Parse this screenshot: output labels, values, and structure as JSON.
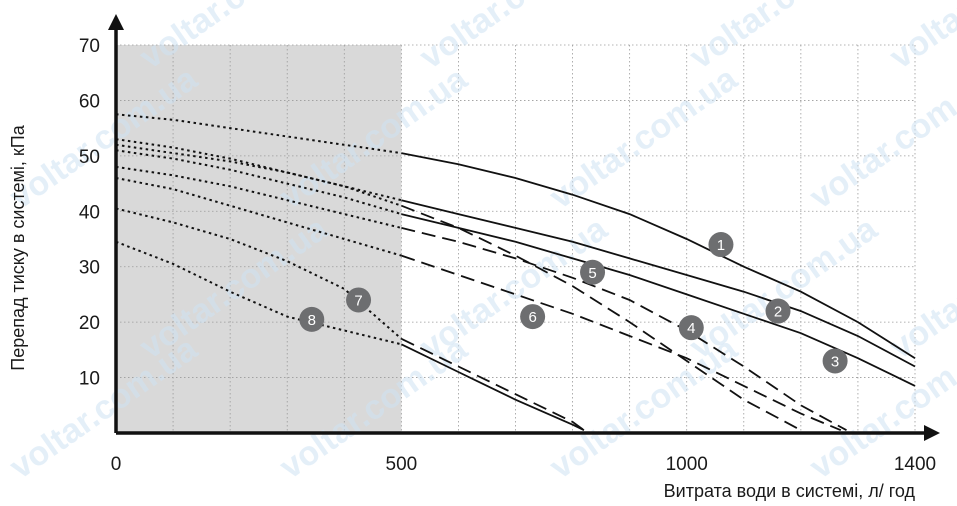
{
  "chart_data": {
    "type": "line",
    "xlabel": "Витрата води в системі, л/ год",
    "ylabel": "Перепад тиску в системі, кПа",
    "xlim": [
      0,
      1450
    ],
    "ylim": [
      0,
      70
    ],
    "x_ticks": [
      0,
      500,
      1000,
      1400
    ],
    "y_ticks": [
      10,
      20,
      30,
      40,
      50,
      60,
      70
    ],
    "grid": true,
    "shaded_region": {
      "x_range": [
        0,
        500
      ],
      "color": "#d9d9d9"
    },
    "watermark": "voltar.com.ua",
    "series": [
      {
        "name": "1",
        "line_style": "solid",
        "dotted_until": 500,
        "points": [
          [
            0,
            57.5
          ],
          [
            100,
            56.5
          ],
          [
            200,
            55
          ],
          [
            300,
            53.5
          ],
          [
            400,
            52
          ],
          [
            500,
            50.5
          ],
          [
            600,
            48.5
          ],
          [
            700,
            46
          ],
          [
            800,
            43
          ],
          [
            900,
            39.5
          ],
          [
            1000,
            35
          ],
          [
            1100,
            30
          ],
          [
            1200,
            25.5
          ],
          [
            1300,
            20
          ],
          [
            1400,
            13.5
          ]
        ],
        "label_at": [
          1060,
          34
        ]
      },
      {
        "name": "2",
        "line_style": "solid",
        "dotted_until": 500,
        "points": [
          [
            0,
            52
          ],
          [
            100,
            50.5
          ],
          [
            200,
            49
          ],
          [
            300,
            47
          ],
          [
            400,
            44.5
          ],
          [
            500,
            42
          ],
          [
            600,
            39.5
          ],
          [
            700,
            37
          ],
          [
            800,
            34.5
          ],
          [
            900,
            31.5
          ],
          [
            1000,
            28.5
          ],
          [
            1100,
            25.5
          ],
          [
            1200,
            22
          ],
          [
            1300,
            17.5
          ],
          [
            1400,
            12
          ]
        ],
        "label_at": [
          1160,
          22
        ]
      },
      {
        "name": "3",
        "line_style": "solid",
        "dotted_until": 500,
        "points": [
          [
            0,
            51
          ],
          [
            100,
            49.5
          ],
          [
            200,
            47.5
          ],
          [
            300,
            45
          ],
          [
            400,
            42.5
          ],
          [
            500,
            39.5
          ],
          [
            600,
            37
          ],
          [
            700,
            34.5
          ],
          [
            800,
            31.5
          ],
          [
            900,
            28.5
          ],
          [
            1000,
            25
          ],
          [
            1100,
            21.5
          ],
          [
            1200,
            18
          ],
          [
            1300,
            13.5
          ],
          [
            1400,
            8.5
          ]
        ],
        "label_at": [
          1260,
          13
        ]
      },
      {
        "name": "4",
        "line_style": "dashed",
        "dotted_until": 500,
        "points": [
          [
            0,
            53
          ],
          [
            100,
            51.5
          ],
          [
            200,
            49.5
          ],
          [
            300,
            47
          ],
          [
            400,
            44.5
          ],
          [
            500,
            41
          ],
          [
            600,
            37
          ],
          [
            700,
            32
          ],
          [
            800,
            26.5
          ],
          [
            900,
            20
          ],
          [
            1000,
            13
          ],
          [
            1100,
            6
          ],
          [
            1200,
            0.5
          ]
        ],
        "label_at": [
          1008,
          19
        ]
      },
      {
        "name": "5",
        "line_style": "dashed",
        "dotted_until": 500,
        "points": [
          [
            0,
            48
          ],
          [
            100,
            46.5
          ],
          [
            200,
            44.5
          ],
          [
            300,
            42
          ],
          [
            400,
            39.5
          ],
          [
            500,
            37
          ],
          [
            600,
            34.5
          ],
          [
            700,
            31.5
          ],
          [
            800,
            28
          ],
          [
            900,
            24
          ],
          [
            1000,
            18.5
          ],
          [
            1100,
            12
          ],
          [
            1200,
            5
          ],
          [
            1280,
            0.5
          ]
        ],
        "label_at": [
          835,
          29
        ]
      },
      {
        "name": "6",
        "line_style": "dashed",
        "dotted_until": 500,
        "points": [
          [
            0,
            46
          ],
          [
            100,
            44
          ],
          [
            200,
            41
          ],
          [
            300,
            38
          ],
          [
            400,
            35
          ],
          [
            500,
            32
          ],
          [
            600,
            28.5
          ],
          [
            700,
            25
          ],
          [
            800,
            21.5
          ],
          [
            900,
            17.5
          ],
          [
            1000,
            13.5
          ],
          [
            1100,
            8.5
          ],
          [
            1200,
            3.5
          ],
          [
            1270,
            0.5
          ]
        ],
        "label_at": [
          730,
          21
        ]
      },
      {
        "name": "7",
        "line_style": "dashed",
        "dotted_until": 500,
        "points": [
          [
            0,
            40.5
          ],
          [
            100,
            38
          ],
          [
            200,
            35
          ],
          [
            300,
            31
          ],
          [
            400,
            26
          ],
          [
            500,
            17
          ],
          [
            600,
            12
          ],
          [
            700,
            7
          ],
          [
            800,
            2
          ],
          [
            820,
            0.5
          ]
        ],
        "label_at": [
          425,
          24
        ]
      },
      {
        "name": "8",
        "line_style": "solid",
        "dotted_until": 500,
        "points": [
          [
            0,
            34.5
          ],
          [
            100,
            30.5
          ],
          [
            200,
            25.5
          ],
          [
            300,
            21
          ],
          [
            400,
            18.5
          ],
          [
            500,
            16
          ],
          [
            600,
            11
          ],
          [
            700,
            6
          ],
          [
            800,
            1.5
          ],
          [
            820,
            0.5
          ]
        ],
        "label_at": [
          343,
          20.5
        ]
      }
    ]
  }
}
